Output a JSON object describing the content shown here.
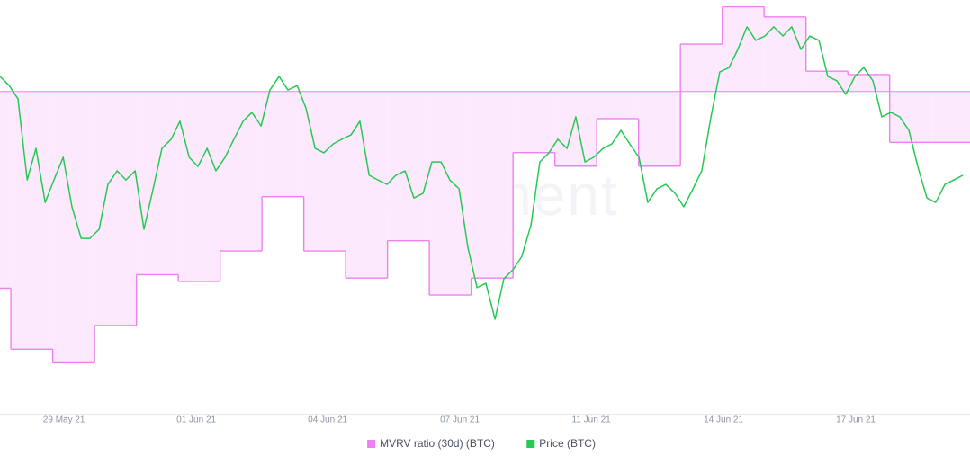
{
  "chart_data": {
    "type": "line",
    "watermark": "santiment",
    "baseline": 1,
    "ylim": [
      0.905,
      1.027
    ],
    "y2lim": [
      28400,
      41500
    ],
    "xlim": [
      -0.26,
      22.92
    ],
    "xticks": [
      {
        "value": 1.27,
        "label": "29 May 21"
      },
      {
        "value": 4.43,
        "label": "01 Jun 21"
      },
      {
        "value": 7.57,
        "label": "04 Jun 21"
      },
      {
        "value": 10.73,
        "label": "07 Jun 21"
      },
      {
        "value": 13.87,
        "label": "11 Jun 21"
      },
      {
        "value": 17.03,
        "label": "14 Jun 21"
      },
      {
        "value": 20.19,
        "label": "17 Jun 21"
      }
    ],
    "series": [
      {
        "name": "MVRV ratio (30d) (BTC)",
        "color": "#ee80f0",
        "fill": "#fde9fd",
        "axis": "y",
        "step": true,
        "x": [
          -1,
          0,
          1,
          2,
          3,
          4,
          5,
          6,
          7,
          8,
          9,
          10,
          11,
          12,
          13,
          14,
          15,
          16,
          17,
          18,
          19,
          20,
          21,
          22
        ],
        "values": [
          0.942,
          0.924,
          0.92,
          0.931,
          0.946,
          0.944,
          0.953,
          0.969,
          0.953,
          0.945,
          0.956,
          0.94,
          0.945,
          0.982,
          0.978,
          0.992,
          0.978,
          1.014,
          1.025,
          1.022,
          1.006,
          1.005,
          0.985,
          0.985
        ]
      },
      {
        "name": "Price (BTC)",
        "color": "#26c953",
        "axis": "y2",
        "x": [
          -0.26,
          -0.04,
          0.17,
          0.39,
          0.6,
          0.82,
          1.03,
          1.25,
          1.46,
          1.68,
          1.89,
          2.11,
          2.32,
          2.54,
          2.75,
          2.97,
          3.18,
          3.4,
          3.61,
          3.83,
          4.04,
          4.26,
          4.47,
          4.69,
          4.9,
          5.12,
          5.33,
          5.55,
          5.76,
          5.98,
          6.19,
          6.41,
          6.62,
          6.84,
          7.05,
          7.27,
          7.48,
          7.7,
          7.91,
          8.13,
          8.34,
          8.56,
          8.77,
          8.99,
          9.2,
          9.42,
          9.63,
          9.85,
          10.06,
          10.28,
          10.49,
          10.71,
          10.92,
          11.14,
          11.35,
          11.57,
          11.78,
          12.0,
          12.21,
          12.43,
          12.64,
          12.86,
          13.07,
          13.29,
          13.5,
          13.72,
          13.93,
          14.15,
          14.36,
          14.58,
          14.79,
          15.01,
          15.22,
          15.44,
          15.65,
          15.87,
          16.08,
          16.3,
          16.51,
          16.73,
          16.94,
          17.16,
          17.37,
          17.59,
          17.8,
          18.02,
          18.23,
          18.45,
          18.66,
          18.88,
          19.09,
          19.31,
          19.52,
          19.74,
          19.95,
          20.17,
          20.38,
          20.6,
          20.81,
          21.03,
          21.24,
          21.46,
          21.67,
          21.89,
          22.1,
          22.32,
          22.53,
          22.75
        ],
        "values": [
          39080,
          38790,
          38370,
          35800,
          36800,
          35090,
          35800,
          36520,
          34950,
          33950,
          33950,
          34240,
          35660,
          36090,
          35800,
          36090,
          34240,
          35520,
          36800,
          37090,
          37660,
          36520,
          36230,
          36800,
          36090,
          36520,
          37090,
          37660,
          37940,
          37510,
          38650,
          39080,
          38650,
          38790,
          38080,
          36800,
          36660,
          36940,
          37090,
          37230,
          37660,
          35950,
          35800,
          35660,
          35950,
          36090,
          35230,
          35380,
          36370,
          36370,
          35800,
          35520,
          33670,
          32390,
          32530,
          31390,
          32670,
          32960,
          33380,
          34380,
          36370,
          36660,
          37090,
          36800,
          37800,
          36370,
          36520,
          36800,
          36940,
          37370,
          36940,
          36520,
          35090,
          35520,
          35660,
          35380,
          34950,
          35520,
          36090,
          37800,
          39220,
          39360,
          39930,
          40650,
          40220,
          40360,
          40650,
          40360,
          40650,
          39930,
          40360,
          40220,
          39080,
          38940,
          38510,
          39080,
          39360,
          38940,
          37800,
          37940,
          37800,
          37370,
          36230,
          35230,
          35090,
          35660,
          35800,
          35950
        ]
      }
    ]
  }
}
